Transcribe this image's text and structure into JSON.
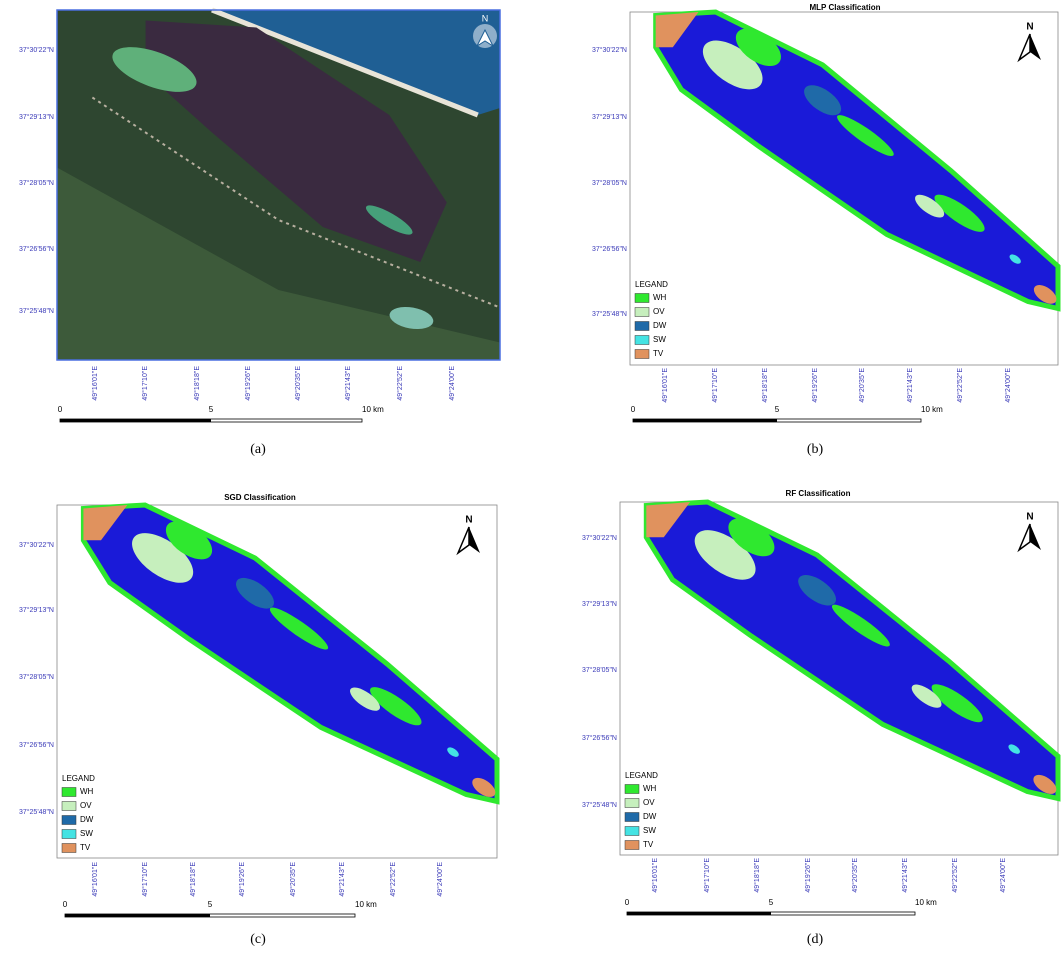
{
  "map_axes": {
    "lat_labels": [
      "37°30'22\"N",
      "37°29'13\"N",
      "37°28'05\"N",
      "37°26'56\"N",
      "37°25'48\"N"
    ],
    "lon_labels": [
      "49°16'01\"E",
      "49°17'10\"E",
      "49°18'18\"E",
      "49°19'26\"E",
      "49°20'35\"E",
      "49°21'43\"E",
      "49°22'52\"E",
      "49°24'00\"E"
    ],
    "scale_labels": [
      "0",
      "5",
      "10 km"
    ],
    "north_label": "N"
  },
  "legend": {
    "title": "LEGAND",
    "items": [
      {
        "label": "WH",
        "color": "#2fe82f"
      },
      {
        "label": "OV",
        "color": "#c6efbd"
      },
      {
        "label": "DW",
        "color": "#1f6aa8"
      },
      {
        "label": "SW",
        "color": "#44e3e3"
      },
      {
        "label": "TV",
        "color": "#e0925e"
      }
    ]
  },
  "panels": [
    {
      "kind": "satellite",
      "caption": "(a)"
    },
    {
      "kind": "classification",
      "title": "MLP Classification",
      "caption": "(b)"
    },
    {
      "kind": "classification",
      "title": "SGD Classification",
      "caption": "(c)"
    },
    {
      "kind": "classification",
      "title": "RF Classification",
      "caption": "(d)"
    }
  ]
}
